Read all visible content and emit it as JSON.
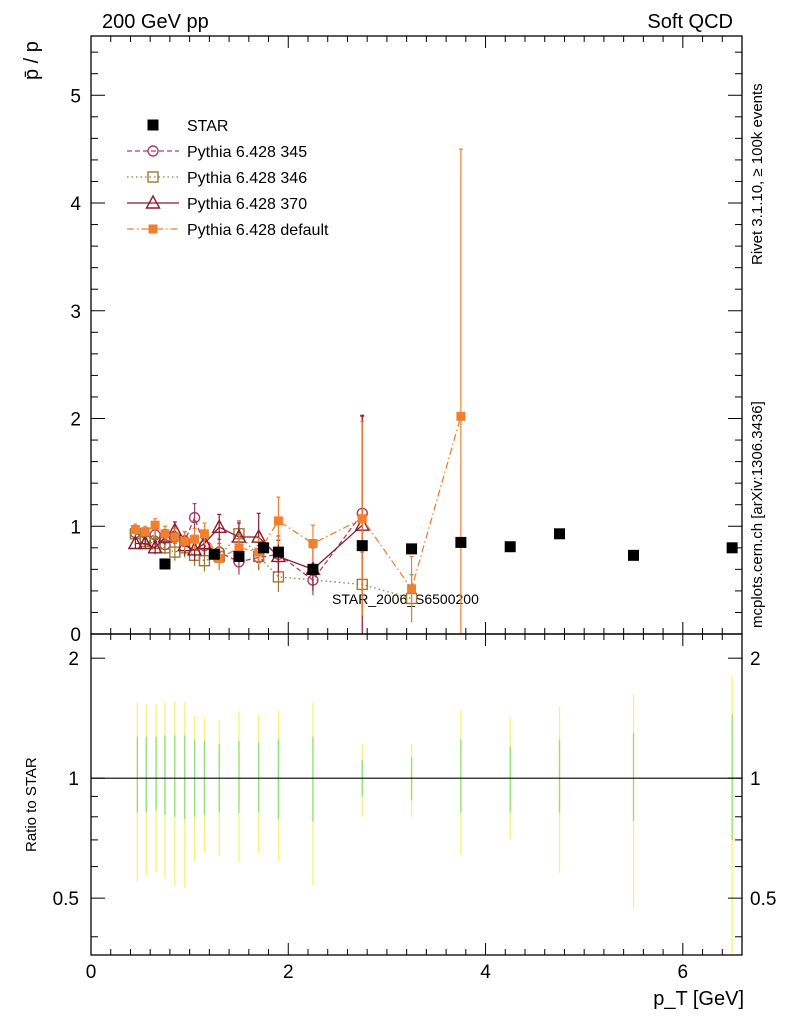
{
  "header": {
    "left": "200 GeV pp",
    "right": "Soft QCD"
  },
  "side_labels": {
    "rivet": "Rivet 3.1.10, ≥ 100k events",
    "mcplots": "mcplots.cern.ch [arXiv:1306.3436]"
  },
  "watermark": "STAR_2006_S6500200",
  "chart_data": [
    {
      "type": "scatter",
      "panel": "main",
      "ylabel": "p̄ / p",
      "xlim": [
        0,
        6.6
      ],
      "ylim": [
        0,
        5.55
      ],
      "y_ticks": [
        "0",
        "1",
        "2",
        "3",
        "4",
        "5"
      ],
      "legend_position": "top-left",
      "series": [
        {
          "name": "STAR",
          "color": "#000000",
          "marker": "filled-square",
          "line": "none",
          "points": [
            [
              0.75,
              0.65
            ],
            [
              1.25,
              0.74
            ],
            [
              1.5,
              0.72
            ],
            [
              1.75,
              0.8
            ],
            [
              1.9,
              0.76
            ],
            [
              2.25,
              0.6
            ],
            [
              2.75,
              0.82
            ],
            [
              3.25,
              0.79
            ],
            [
              3.75,
              0.85
            ],
            [
              4.25,
              0.81
            ],
            [
              4.75,
              0.93
            ],
            [
              5.5,
              0.73
            ],
            [
              6.5,
              0.8
            ]
          ]
        },
        {
          "name": "Pythia 6.428 345",
          "color": "#a84060",
          "marker": "open-circle",
          "line": "dashed",
          "points": [
            [
              0.45,
              0.94
            ],
            [
              0.55,
              0.88
            ],
            [
              0.65,
              0.92
            ],
            [
              0.75,
              0.83
            ],
            [
              0.85,
              0.9
            ],
            [
              0.95,
              0.86
            ],
            [
              1.05,
              1.08
            ],
            [
              1.15,
              0.82
            ],
            [
              1.3,
              0.76
            ],
            [
              1.5,
              0.67
            ],
            [
              1.7,
              0.71
            ],
            [
              1.9,
              0.74
            ],
            [
              2.25,
              0.5
            ],
            [
              2.75,
              1.12
            ]
          ],
          "errors": [
            0.05,
            0.05,
            0.06,
            0.06,
            0.08,
            0.09,
            0.13,
            0.09,
            0.12,
            0.12,
            0.11,
            0.17,
            0.14,
            0.9
          ]
        },
        {
          "name": "Pythia 6.428 346",
          "color": "#9a7a34",
          "marker": "open-square",
          "line": "dotted",
          "points": [
            [
              0.45,
              0.93
            ],
            [
              0.55,
              0.86
            ],
            [
              0.65,
              0.84
            ],
            [
              0.75,
              0.8
            ],
            [
              0.85,
              0.76
            ],
            [
              0.95,
              0.8
            ],
            [
              1.05,
              0.73
            ],
            [
              1.15,
              0.68
            ],
            [
              1.3,
              0.72
            ],
            [
              1.5,
              0.93
            ],
            [
              1.7,
              0.72
            ],
            [
              1.9,
              0.53
            ],
            [
              2.75,
              0.46
            ],
            [
              3.25,
              0.33
            ]
          ],
          "errors": [
            0.05,
            0.05,
            0.06,
            0.06,
            0.08,
            0.09,
            0.1,
            0.1,
            0.12,
            0.12,
            0.13,
            0.14,
            0.3,
            0.22
          ]
        },
        {
          "name": "Pythia 6.428 370",
          "color": "#8b1a2e",
          "marker": "open-triangle",
          "line": "solid",
          "points": [
            [
              0.45,
              0.84
            ],
            [
              0.55,
              0.84
            ],
            [
              0.65,
              0.8
            ],
            [
              0.75,
              0.9
            ],
            [
              0.85,
              0.96
            ],
            [
              0.95,
              0.82
            ],
            [
              1.05,
              0.78
            ],
            [
              1.15,
              0.84
            ],
            [
              1.3,
              0.99
            ],
            [
              1.5,
              0.9
            ],
            [
              1.7,
              0.9
            ],
            [
              1.9,
              0.72
            ],
            [
              2.25,
              0.6
            ],
            [
              2.75,
              1.01
            ]
          ],
          "errors": [
            0.05,
            0.05,
            0.06,
            0.07,
            0.08,
            0.09,
            0.1,
            0.11,
            0.12,
            0.13,
            0.22,
            0.15,
            0.2,
            1.02
          ]
        },
        {
          "name": "Pythia 6.428 default",
          "color": "#f08030",
          "marker": "filled-square-small",
          "line": "dash-dot",
          "points": [
            [
              0.45,
              0.97
            ],
            [
              0.55,
              0.95
            ],
            [
              0.65,
              1.01
            ],
            [
              0.75,
              0.93
            ],
            [
              0.85,
              0.9
            ],
            [
              0.95,
              0.86
            ],
            [
              1.05,
              0.88
            ],
            [
              1.15,
              0.93
            ],
            [
              1.3,
              0.7
            ],
            [
              1.5,
              0.8
            ],
            [
              1.7,
              0.76
            ],
            [
              1.9,
              1.05
            ],
            [
              2.25,
              0.84
            ],
            [
              2.75,
              1.07
            ],
            [
              3.25,
              0.42
            ],
            [
              3.75,
              2.02
            ]
          ],
          "errors": [
            0.05,
            0.05,
            0.06,
            0.07,
            0.08,
            0.09,
            0.1,
            0.1,
            0.11,
            0.12,
            0.13,
            0.22,
            0.17,
            0.9,
            0.3,
            2.48
          ]
        }
      ]
    },
    {
      "type": "band",
      "panel": "ratio",
      "ylabel": "Ratio to STAR",
      "xlabel": "p_T [GeV]",
      "x_ticks": [
        "0",
        "2",
        "4",
        "6"
      ],
      "y_ticks": [
        "0.5",
        "1",
        "2"
      ],
      "ylim": [
        0.36,
        2.3
      ],
      "log_scale_y": true,
      "reference_line": 1,
      "bands": [
        {
          "x": 0.47,
          "inner": [
            0.82,
            1.27
          ],
          "outer": [
            0.55,
            1.55
          ]
        },
        {
          "x": 0.56,
          "inner": [
            0.82,
            1.27
          ],
          "outer": [
            0.57,
            1.53
          ]
        },
        {
          "x": 0.66,
          "inner": [
            0.83,
            1.27
          ],
          "outer": [
            0.58,
            1.53
          ]
        },
        {
          "x": 0.75,
          "inner": [
            0.81,
            1.28
          ],
          "outer": [
            0.56,
            1.55
          ]
        },
        {
          "x": 0.85,
          "inner": [
            0.8,
            1.28
          ],
          "outer": [
            0.54,
            1.56
          ]
        },
        {
          "x": 0.95,
          "inner": [
            0.79,
            1.28
          ],
          "outer": [
            0.53,
            1.55
          ]
        },
        {
          "x": 1.05,
          "inner": [
            0.8,
            1.25
          ],
          "outer": [
            0.62,
            1.43
          ]
        },
        {
          "x": 1.15,
          "inner": [
            0.81,
            1.24
          ],
          "outer": [
            0.65,
            1.42
          ]
        },
        {
          "x": 1.3,
          "inner": [
            0.82,
            1.22
          ],
          "outer": [
            0.64,
            1.4
          ]
        },
        {
          "x": 1.5,
          "inner": [
            0.82,
            1.24
          ],
          "outer": [
            0.62,
            1.47
          ]
        },
        {
          "x": 1.7,
          "inner": [
            0.82,
            1.23
          ],
          "outer": [
            0.65,
            1.44
          ]
        },
        {
          "x": 1.9,
          "inner": [
            0.79,
            1.25
          ],
          "outer": [
            0.62,
            1.48
          ]
        },
        {
          "x": 2.25,
          "inner": [
            0.78,
            1.27
          ],
          "outer": [
            0.54,
            1.55
          ]
        },
        {
          "x": 2.75,
          "inner": [
            0.9,
            1.11
          ],
          "outer": [
            0.8,
            1.22
          ]
        },
        {
          "x": 3.25,
          "inner": [
            0.88,
            1.13
          ],
          "outer": [
            0.8,
            1.22
          ]
        },
        {
          "x": 3.75,
          "inner": [
            0.82,
            1.25
          ],
          "outer": [
            0.64,
            1.48
          ]
        },
        {
          "x": 4.25,
          "inner": [
            0.82,
            1.2
          ],
          "outer": [
            0.7,
            1.42
          ]
        },
        {
          "x": 4.75,
          "inner": [
            0.82,
            1.25
          ],
          "outer": [
            0.58,
            1.51
          ]
        },
        {
          "x": 5.5,
          "inner": [
            0.78,
            1.3
          ],
          "outer": [
            0.47,
            1.62
          ]
        },
        {
          "x": 6.5,
          "inner": [
            0.7,
            1.45
          ],
          "outer": [
            0.36,
            1.8
          ]
        }
      ]
    }
  ]
}
